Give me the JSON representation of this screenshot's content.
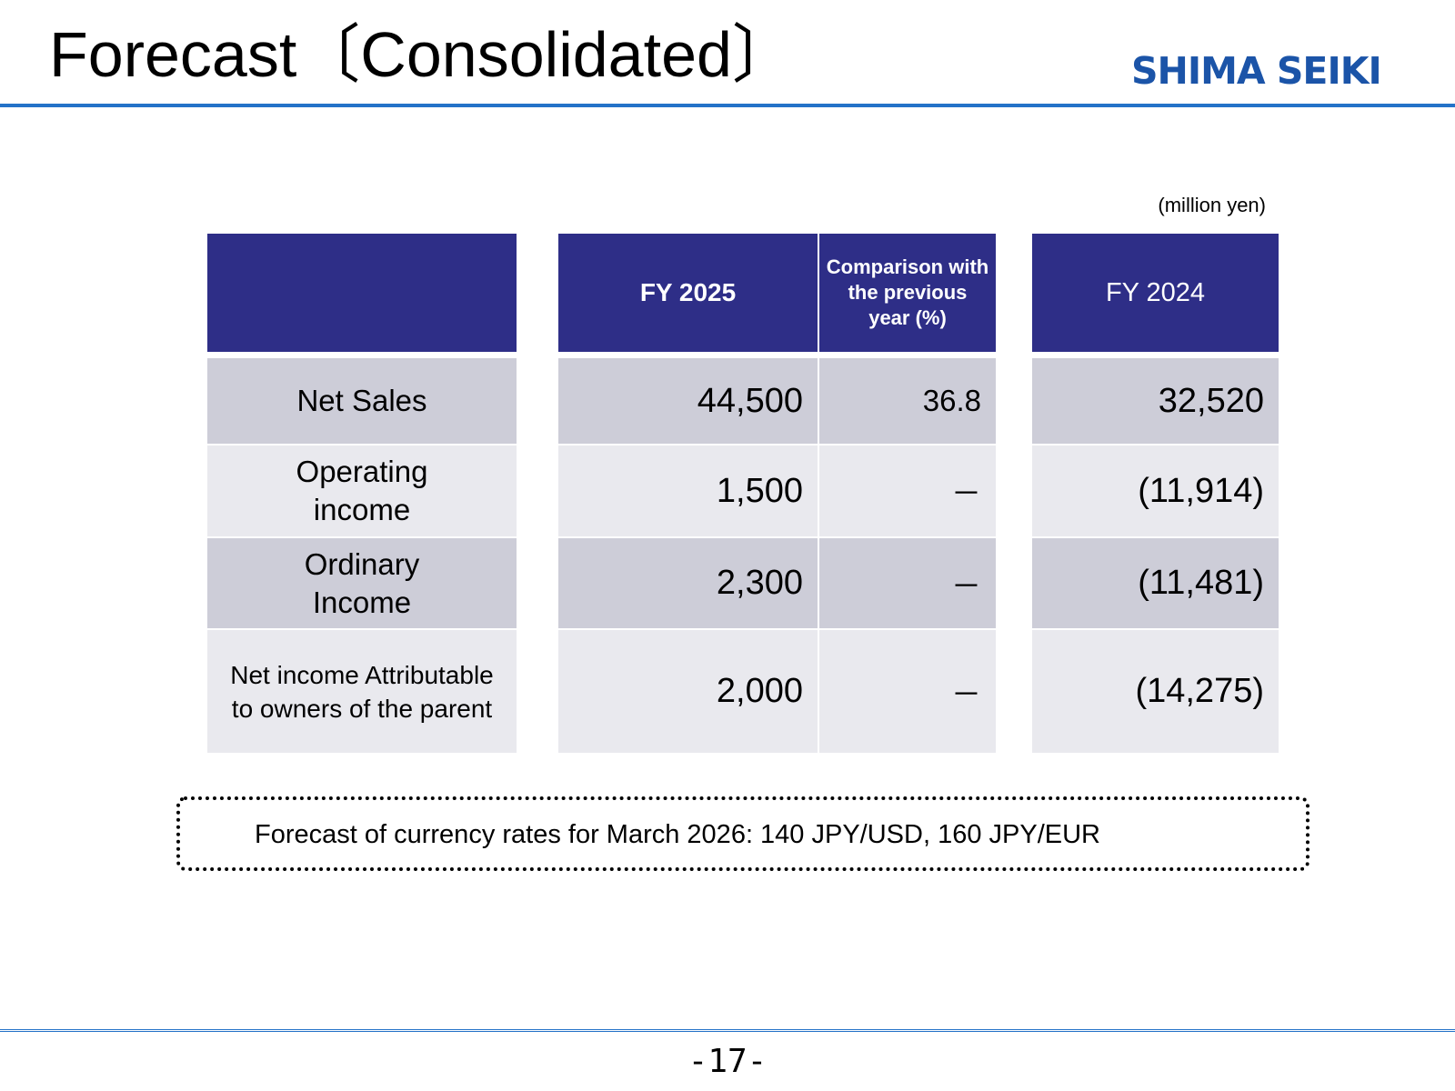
{
  "header": {
    "title": "Forecast〔Consolidated〕",
    "logo_text": "SHIMA SEIKI",
    "accent_color": "#2472c8",
    "logo_color": "#1b54a8"
  },
  "table": {
    "unit_label": "(million yen)",
    "columns": {
      "fy2025": "FY 2025",
      "comparison": "Comparison with the previous year (%)",
      "fy2024": "FY 2024"
    },
    "rows": [
      {
        "label": "Net Sales",
        "fy2025": "44,500",
        "comparison": "36.8",
        "fy2024": "32,520"
      },
      {
        "label": "Operating income",
        "fy2025": "1,500",
        "comparison": "－",
        "fy2024": "(11,914)"
      },
      {
        "label": "Ordinary Income",
        "fy2025": "2,300",
        "comparison": "－",
        "fy2024": "(11,481)"
      },
      {
        "label": "Net income Attributable to owners of the parent",
        "fy2025": "2,000",
        "comparison": "－",
        "fy2024": "(14,275)"
      }
    ],
    "header_color": "#2e2e87",
    "row_colors": [
      "#cdcdd8",
      "#e9e9ee"
    ]
  },
  "note": {
    "text": "Forecast of currency rates for March 2026: 140 JPY/USD, 160 JPY/EUR"
  },
  "footer": {
    "page_number": "-17-"
  }
}
